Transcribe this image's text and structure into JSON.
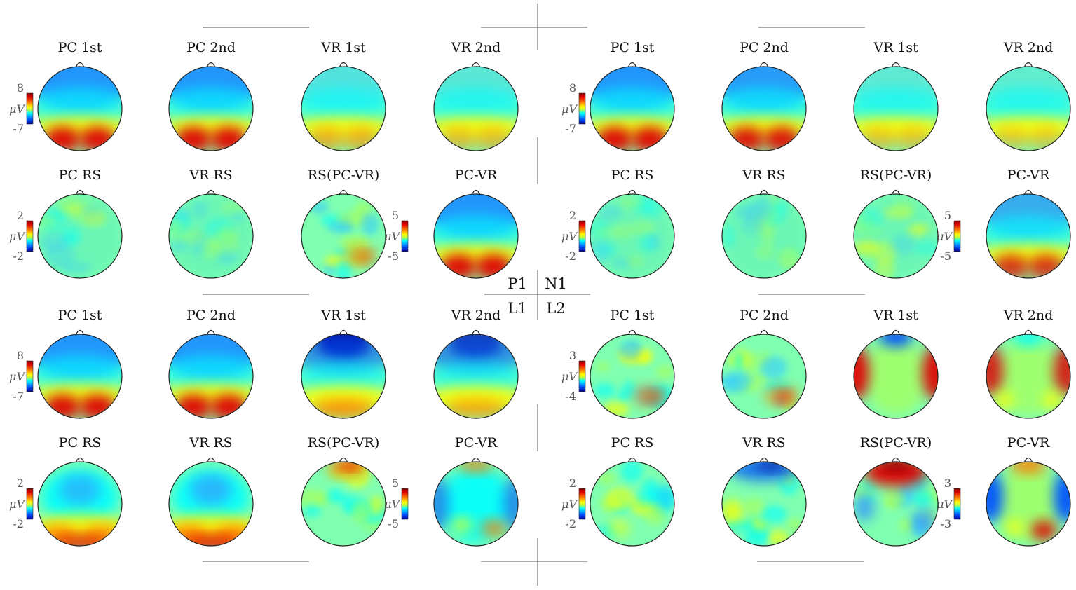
{
  "quadrants": {
    "top_left": "P1",
    "top_right": "N1",
    "bottom_left": "L1",
    "bottom_right": "L2"
  },
  "unit": "μV",
  "colors": {
    "dark_blue": "#00008f",
    "blue": "#0050ff",
    "cyan": "#00ffff",
    "green_yellow": "#aaff55",
    "yellow": "#ffff00",
    "orange": "#ff8000",
    "red": "#e00000",
    "dark_red": "#800000"
  },
  "panels": [
    {
      "id": "P1",
      "rows": [
        {
          "colorbars": [
            {
              "max": "8",
              "min": "-7"
            }
          ],
          "maps": [
            {
              "title": "PC 1st",
              "pattern": "frontal-blue-occipital-red",
              "intensity": 1.0
            },
            {
              "title": "PC 2nd",
              "pattern": "frontal-blue-occipital-red",
              "intensity": 1.0
            },
            {
              "title": "VR 1st",
              "pattern": "frontal-blue-occipital-red",
              "intensity": 0.6
            },
            {
              "title": "VR 2nd",
              "pattern": "frontal-blue-occipital-red",
              "intensity": 0.5
            }
          ]
        },
        {
          "colorbars": [
            {
              "max": "2",
              "min": "-2"
            },
            {
              "max": "5",
              "min": "-5"
            }
          ],
          "maps": [
            {
              "title": "PC RS",
              "pattern": "mottled",
              "intensity": 0.3
            },
            {
              "title": "VR RS",
              "pattern": "mottled",
              "intensity": 0.35
            },
            {
              "title": "RS(PC-VR)",
              "pattern": "mottled-right-red",
              "intensity": 0.6
            },
            {
              "title": "PC-VR",
              "pattern": "frontal-blue-occipital-red",
              "intensity": 1.0
            }
          ]
        }
      ]
    },
    {
      "id": "N1",
      "rows": [
        {
          "colorbars": [
            {
              "max": "8",
              "min": "-7"
            }
          ],
          "maps": [
            {
              "title": "PC 1st",
              "pattern": "frontal-blue-occipital-red",
              "intensity": 1.0
            },
            {
              "title": "PC 2nd",
              "pattern": "frontal-blue-occipital-red",
              "intensity": 0.95
            },
            {
              "title": "VR 1st",
              "pattern": "frontal-blue-occipital-red",
              "intensity": 0.45
            },
            {
              "title": "VR 2nd",
              "pattern": "frontal-blue-occipital-red",
              "intensity": 0.4
            }
          ]
        },
        {
          "colorbars": [
            {
              "max": "2",
              "min": "-2"
            },
            {
              "max": "5",
              "min": "-5"
            }
          ],
          "maps": [
            {
              "title": "PC RS",
              "pattern": "mottled",
              "intensity": 0.3
            },
            {
              "title": "VR RS",
              "pattern": "mottled",
              "intensity": 0.3
            },
            {
              "title": "RS(PC-VR)",
              "pattern": "mottled",
              "intensity": 0.3
            },
            {
              "title": "PC-VR",
              "pattern": "frontal-blue-occipital-red",
              "intensity": 0.8
            }
          ]
        }
      ]
    },
    {
      "id": "L1",
      "rows": [
        {
          "colorbars": [
            {
              "max": "8",
              "min": "-7"
            }
          ],
          "maps": [
            {
              "title": "PC 1st",
              "pattern": "frontal-blue-occipital-red",
              "intensity": 1.1
            },
            {
              "title": "PC 2nd",
              "pattern": "frontal-blue-occipital-red",
              "intensity": 1.1
            },
            {
              "title": "VR 1st",
              "pattern": "strong-frontal-blue",
              "intensity": 1.0
            },
            {
              "title": "VR 2nd",
              "pattern": "strong-frontal-blue",
              "intensity": 0.8
            }
          ]
        },
        {
          "colorbars": [
            {
              "max": "2",
              "min": "-2"
            },
            {
              "max": "5",
              "min": "-5"
            }
          ],
          "maps": [
            {
              "title": "PC RS",
              "pattern": "central-blue-posterior-red",
              "intensity": 0.9
            },
            {
              "title": "VR RS",
              "pattern": "central-blue-posterior-red",
              "intensity": 1.0
            },
            {
              "title": "RS(PC-VR)",
              "pattern": "mottled-top-red",
              "intensity": 0.6
            },
            {
              "title": "PC-VR",
              "pattern": "lateral-blue",
              "intensity": 0.7
            }
          ]
        }
      ]
    },
    {
      "id": "L2",
      "rows": [
        {
          "colorbars": [
            {
              "max": "3",
              "min": "-4"
            }
          ],
          "maps": [
            {
              "title": "PC 1st",
              "pattern": "mottled-right-red",
              "intensity": 0.7
            },
            {
              "title": "PC 2nd",
              "pattern": "mottled-right-red",
              "intensity": 0.8
            },
            {
              "title": "VR 1st",
              "pattern": "lateral-red-frontal-blue",
              "intensity": 1.0
            },
            {
              "title": "VR 2nd",
              "pattern": "lateral-red",
              "intensity": 0.9
            }
          ]
        },
        {
          "colorbars": [
            {
              "max": "2",
              "min": "-2"
            },
            {
              "max": "3",
              "min": "-3"
            }
          ],
          "maps": [
            {
              "title": "PC RS",
              "pattern": "mottled-right-blue",
              "intensity": 0.5
            },
            {
              "title": "VR RS",
              "pattern": "top-blue-mottled",
              "intensity": 0.8
            },
            {
              "title": "RS(PC-VR)",
              "pattern": "top-red-mottled-blue",
              "intensity": 1.0
            },
            {
              "title": "PC-VR",
              "pattern": "lateral-blue-posterior-red",
              "intensity": 1.0
            }
          ]
        }
      ]
    }
  ]
}
